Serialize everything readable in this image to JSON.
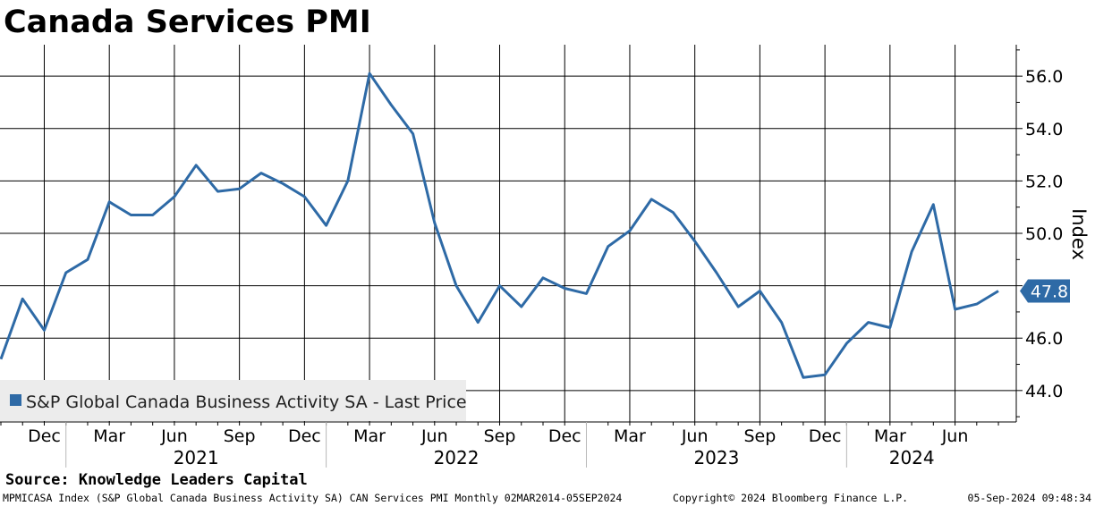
{
  "title": "Canada Services PMI",
  "source": "Source: Knowledge Leaders Capital",
  "footer": {
    "left": "MPMICASA Index (S&P Global Canada Business Activity SA) CAN Services PMI  Monthly 02MAR2014-05SEP2024",
    "center": "Copyright© 2024 Bloomberg Finance L.P.",
    "right": "05-Sep-2024 09:48:34"
  },
  "chart_data": {
    "type": "line",
    "title": "Canada Services PMI",
    "ylabel": "Index",
    "ylim": [
      42.8,
      57.2
    ],
    "yticks": [
      44.0,
      46.0,
      48.0,
      50.0,
      52.0,
      54.0,
      56.0
    ],
    "ytick_labels": [
      "44.0",
      "46.0",
      "48.0",
      "50.0",
      "52.0",
      "54.0",
      "56.0"
    ],
    "grid": true,
    "legend_position": "bottom-left",
    "x_month_labels": [
      "Dec",
      "Mar",
      "Jun",
      "Sep",
      "Dec",
      "Mar",
      "Jun",
      "Sep",
      "Dec",
      "Mar",
      "Jun",
      "Sep",
      "Dec",
      "Mar",
      "Jun"
    ],
    "x_year_labels": [
      "2021",
      "2022",
      "2023",
      "2024"
    ],
    "last_value_label": "47.8",
    "series": [
      {
        "name": "S&P Global Canada Business Activity SA - Last Price",
        "color": "#2e6aa6",
        "x": [
          "2020-10",
          "2020-11",
          "2020-12",
          "2021-01",
          "2021-02",
          "2021-03",
          "2021-04",
          "2021-05",
          "2021-06",
          "2021-07",
          "2021-08",
          "2021-09",
          "2021-10",
          "2021-11",
          "2021-12",
          "2022-01",
          "2022-02",
          "2022-03",
          "2022-04",
          "2022-05",
          "2022-06",
          "2022-07",
          "2022-08",
          "2022-09",
          "2022-10",
          "2022-11",
          "2022-12",
          "2023-01",
          "2023-02",
          "2023-03",
          "2023-04",
          "2023-05",
          "2023-06",
          "2023-07",
          "2023-08",
          "2023-09",
          "2023-10",
          "2023-11",
          "2023-12",
          "2024-01",
          "2024-02",
          "2024-03",
          "2024-04",
          "2024-05",
          "2024-06",
          "2024-07",
          "2024-08"
        ],
        "values": [
          45.2,
          47.5,
          46.3,
          48.5,
          49.0,
          51.2,
          50.7,
          50.7,
          51.4,
          52.6,
          51.6,
          51.7,
          52.3,
          51.9,
          51.4,
          50.3,
          52.0,
          56.1,
          54.9,
          53.8,
          50.4,
          48.0,
          46.6,
          48.0,
          47.2,
          48.3,
          47.9,
          47.7,
          49.5,
          50.1,
          51.3,
          50.8,
          49.7,
          48.5,
          47.2,
          47.8,
          46.6,
          44.5,
          44.6,
          45.8,
          46.6,
          46.4,
          49.3,
          51.1,
          47.1,
          47.3,
          47.8
        ]
      }
    ]
  }
}
